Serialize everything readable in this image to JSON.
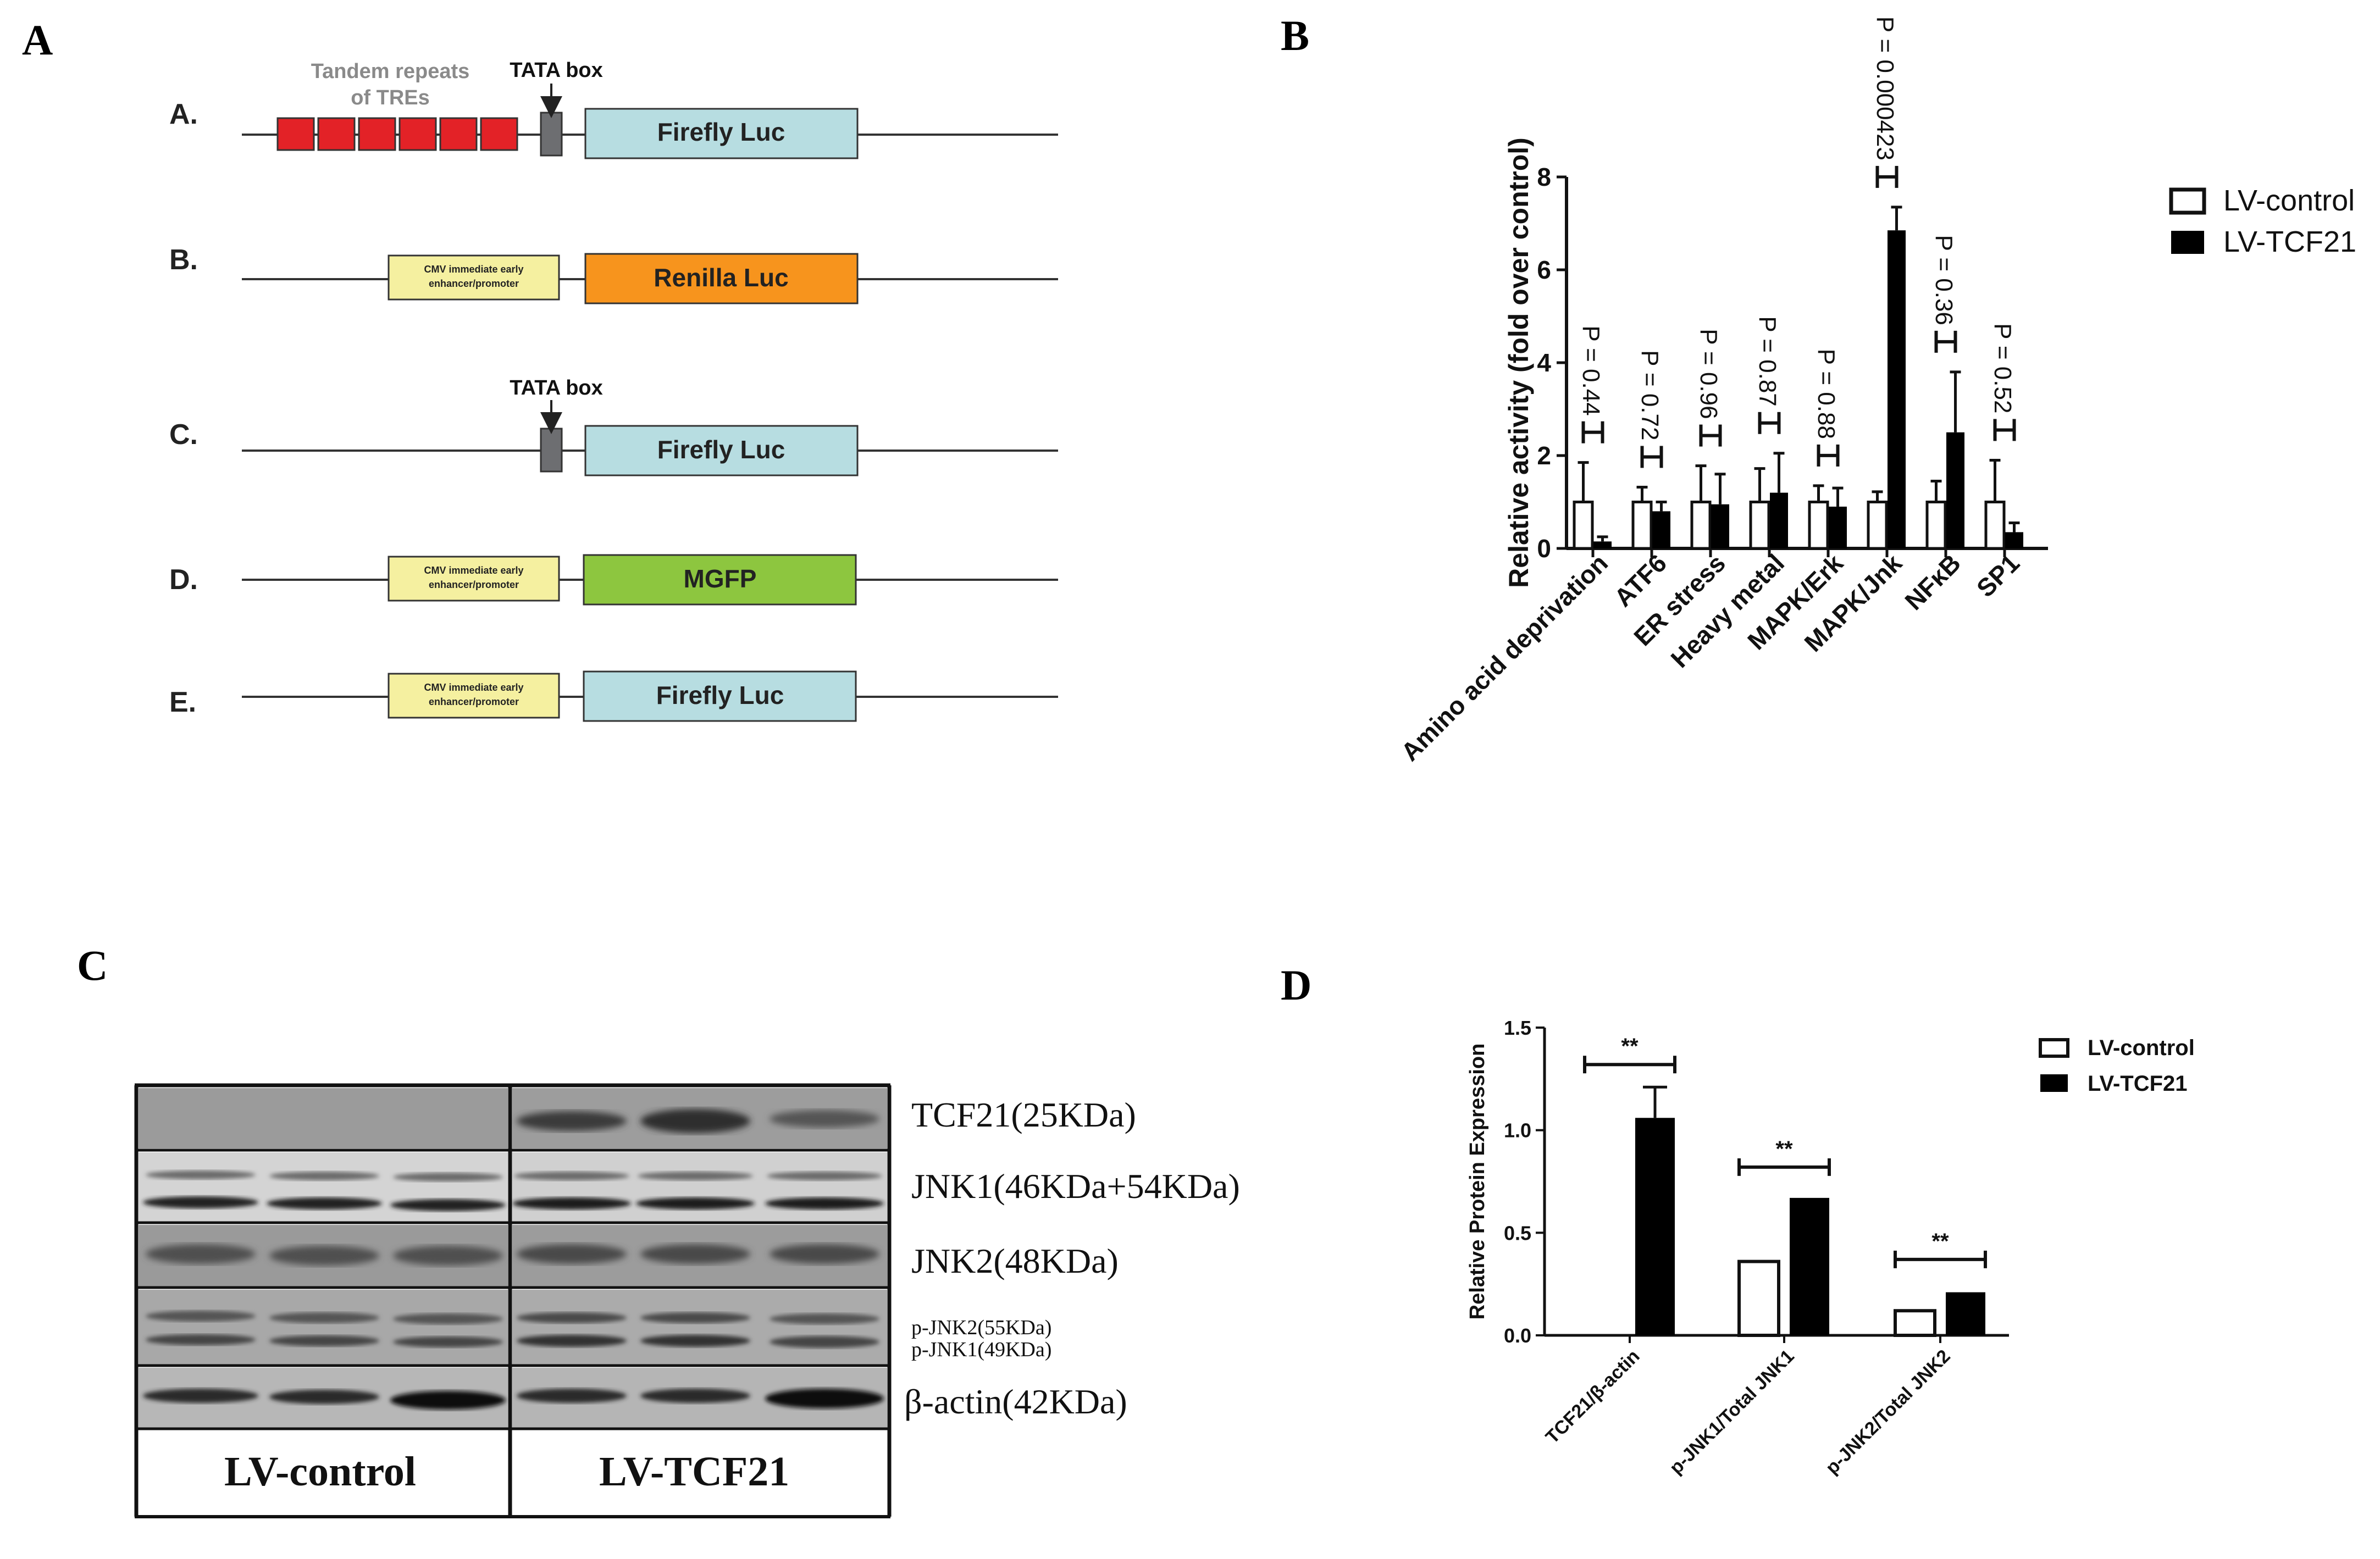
{
  "panel_letters": {
    "a": "A",
    "b": "B",
    "c": "C",
    "d": "D"
  },
  "panelA": {
    "constructs": [
      {
        "label": "A.",
        "note_tre": "Tandem repeats",
        "note_tre2": "of TREs",
        "tata": "TATA box",
        "box": "Firefly Luc",
        "box_color": "#b7dde1"
      },
      {
        "label": "B.",
        "promoter": "CMV immediate early",
        "promoter2": "enhancer/promoter",
        "box": "Renilla Luc",
        "box_color": "#f7941d"
      },
      {
        "label": "C.",
        "tata": "TATA box",
        "box": "Firefly Luc",
        "box_color": "#b7dde1"
      },
      {
        "label": "D.",
        "promoter": "CMV immediate early",
        "promoter2": "enhancer/promoter",
        "box": "MGFP",
        "box_color": "#8dc63f"
      },
      {
        "label": "E.",
        "promoter": "CMV immediate early",
        "promoter2": "enhancer/promoter",
        "box": "Firefly Luc",
        "box_color": "#b7dde1"
      }
    ],
    "colors": {
      "tre": "#e32227",
      "tata": "#6d6e71",
      "promoter": "#f5f0a0"
    }
  },
  "panelC": {
    "rows": [
      {
        "label": "TCF21(25KDa)"
      },
      {
        "label": "JNK1(46KDa+54KDa)"
      },
      {
        "label": "JNK2(48KDa)"
      },
      {
        "label": "p-JNK2(55KDa)",
        "label2": "p-JNK1(49KDa)"
      },
      {
        "label": "β-actin(42KDa)"
      }
    ],
    "groups": [
      "LV-control",
      "LV-TCF21"
    ]
  },
  "chart_data": [
    {
      "type": "bar",
      "panel": "B",
      "title": "",
      "xlabel": "",
      "ylabel": "Relative activity (fold over control)",
      "ylim": [
        0,
        8
      ],
      "yticks": [
        "0",
        "2",
        "4",
        "6",
        "8"
      ],
      "categories": [
        "Amino acid deprivation",
        "ATF6",
        "ER stress",
        "Heavy metal",
        "MAPK/Erk",
        "MAPK/Jnk",
        "NFκB",
        "SP1"
      ],
      "series": [
        {
          "name": "LV-control",
          "values": [
            1.0,
            1.0,
            1.0,
            1.0,
            1.0,
            1.0,
            1.0,
            1.0
          ],
          "errors": [
            0.85,
            0.32,
            0.78,
            0.72,
            0.35,
            0.22,
            0.45,
            0.9
          ],
          "fill": "#ffffff"
        },
        {
          "name": "LV-TCF21",
          "values": [
            0.15,
            0.8,
            0.95,
            1.2,
            0.9,
            6.85,
            2.5,
            0.35
          ],
          "errors": [
            0.1,
            0.2,
            0.65,
            0.85,
            0.4,
            0.5,
            1.3,
            0.2
          ],
          "fill": "#000000"
        }
      ],
      "annotations": [
        "P = 0.44",
        "P = 0.72",
        "P = 0.96",
        "P = 0.87",
        "P = 0.88",
        "P = 0.000423",
        "P = 0.36",
        "P = 0.52"
      ],
      "legend": [
        "LV-control",
        "LV-TCF21"
      ]
    },
    {
      "type": "bar",
      "panel": "D",
      "title": "",
      "xlabel": "",
      "ylabel": "Relative Protein Expression",
      "ylim": [
        0,
        1.5
      ],
      "yticks": [
        "0.0",
        "0.5",
        "1.0",
        "1.5"
      ],
      "categories": [
        "TCF21/β-actin",
        "p-JNK1/Total JNK1",
        "p-JNK2/Total JNK2"
      ],
      "series": [
        {
          "name": "LV-control",
          "values": [
            0.0,
            0.36,
            0.12
          ],
          "errors": [
            0,
            0.01,
            0.005
          ],
          "fill": "#ffffff"
        },
        {
          "name": "LV-TCF21",
          "values": [
            1.06,
            0.67,
            0.21
          ],
          "errors": [
            0.15,
            0.01,
            0.01
          ],
          "fill": "#000000"
        }
      ],
      "annotations": [
        "**",
        "**",
        "**"
      ],
      "legend": [
        "LV-control",
        "LV-TCF21"
      ]
    }
  ]
}
